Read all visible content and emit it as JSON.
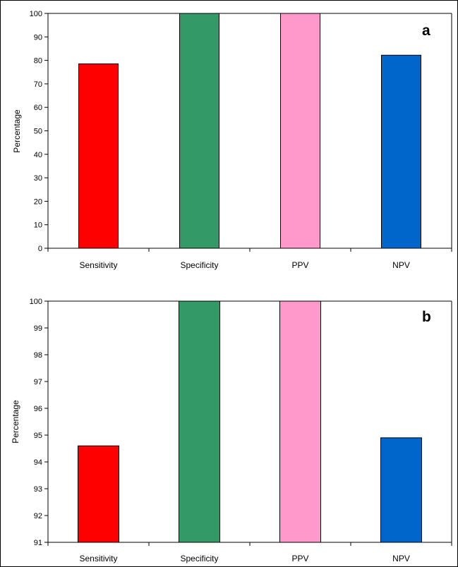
{
  "chart_data": [
    {
      "type": "bar",
      "panel_label": "a",
      "categories": [
        "Sensitivity",
        "Specificity",
        "PPV",
        "NPV"
      ],
      "values": [
        78.5,
        100,
        100,
        82.2
      ],
      "colors": [
        "#ff0000",
        "#339966",
        "#ff99cc",
        "#0066cc"
      ],
      "ylabel": "Percentage",
      "xlabel": "",
      "ylim": [
        0,
        100
      ],
      "yticks": [
        0,
        10,
        20,
        30,
        40,
        50,
        60,
        70,
        80,
        90,
        100
      ],
      "tick_labels": [
        "0",
        "10",
        "20",
        "30",
        "40",
        "50",
        "60",
        "70",
        "80",
        "90",
        "100"
      ],
      "grid": false,
      "legend": "none"
    },
    {
      "type": "bar",
      "panel_label": "b",
      "categories": [
        "Sensitivity",
        "Specificity",
        "PPV",
        "NPV"
      ],
      "values": [
        94.6,
        100,
        100,
        94.9
      ],
      "colors": [
        "#ff0000",
        "#339966",
        "#ff99cc",
        "#0066cc"
      ],
      "ylabel": "Percentage",
      "xlabel": "",
      "ylim": [
        91,
        100
      ],
      "yticks": [
        91,
        92,
        93,
        94,
        95,
        96,
        97,
        98,
        99,
        100
      ],
      "tick_labels": [
        "91",
        "92",
        "93",
        "94",
        "95",
        "96",
        "97",
        "98",
        "99",
        "100"
      ],
      "grid": false,
      "legend": "none"
    }
  ]
}
